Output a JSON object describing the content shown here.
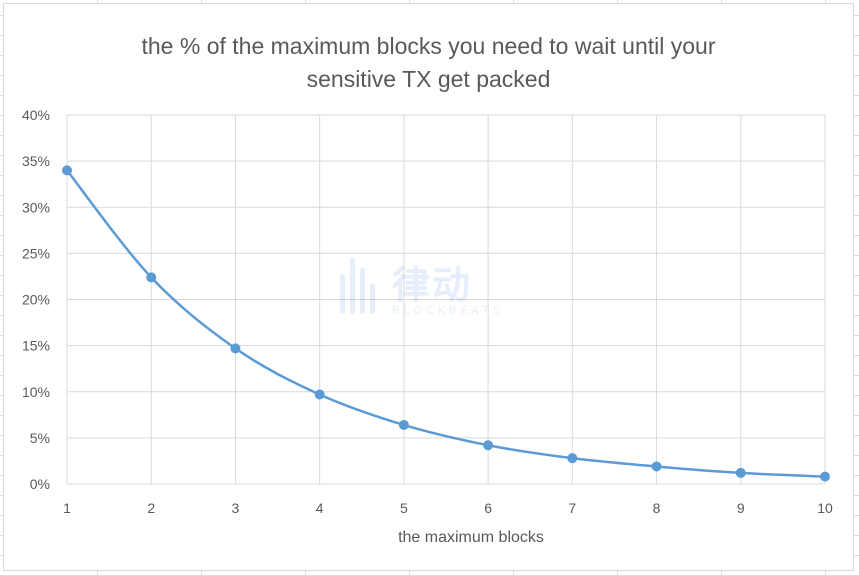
{
  "chart_data": {
    "type": "line",
    "title": "the % of the maximum blocks you need to wait until your sensitive TX get packed",
    "title_lines": [
      "the % of the maximum blocks you need to wait until your",
      "sensitive TX get packed"
    ],
    "xlabel": "the maximum blocks",
    "ylabel": "",
    "categories": [
      "1",
      "2",
      "3",
      "4",
      "5",
      "6",
      "7",
      "8",
      "9",
      "10"
    ],
    "x": [
      1,
      2,
      3,
      4,
      5,
      6,
      7,
      8,
      9,
      10
    ],
    "series": [
      {
        "values": [
          34.0,
          22.4,
          14.7,
          9.7,
          6.4,
          4.2,
          2.8,
          1.9,
          1.2,
          0.8
        ]
      }
    ],
    "ylim": [
      0,
      40
    ],
    "yticks": [
      "0%",
      "5%",
      "10%",
      "15%",
      "20%",
      "25%",
      "30%",
      "35%",
      "40%"
    ],
    "grid": true,
    "smooth": true,
    "series_color": "#5b9bd5",
    "grid_color": "#d9d9d9",
    "text_color": "#595959"
  },
  "watermark": {
    "text": "律动",
    "subtext": "BLOCKBEATS"
  }
}
